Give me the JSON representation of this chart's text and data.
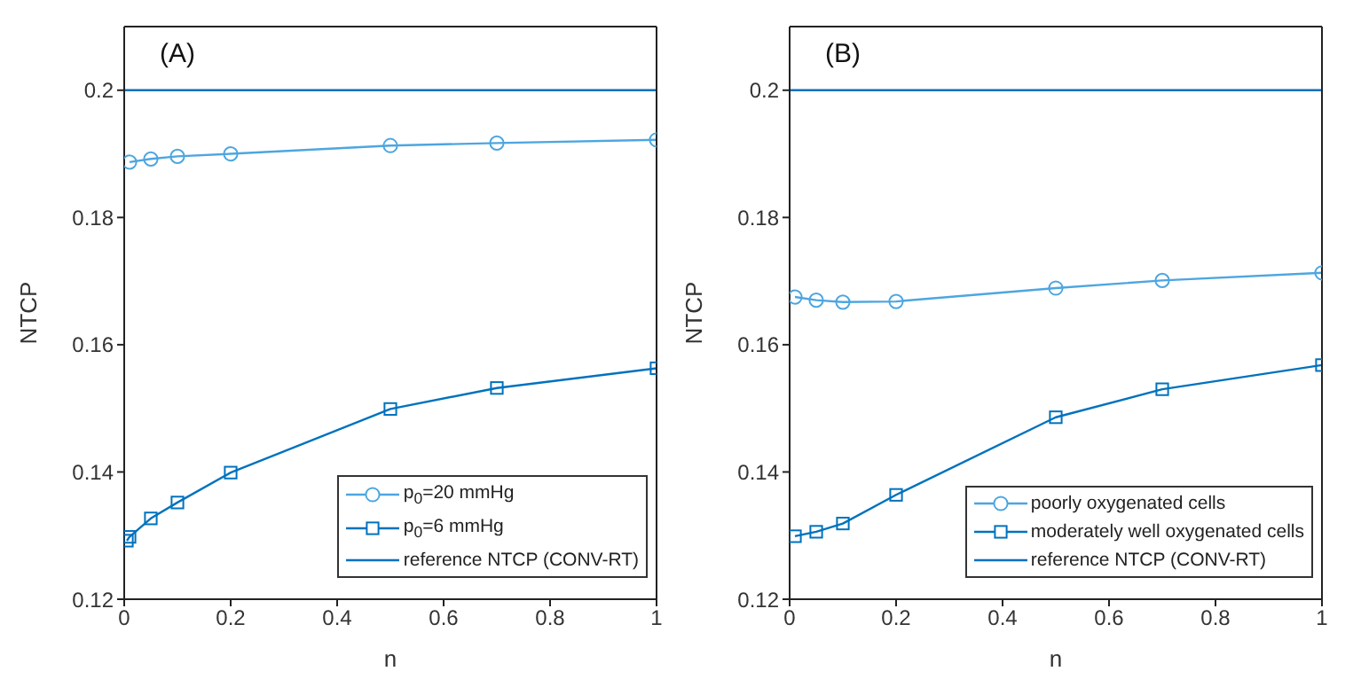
{
  "chart_data": [
    {
      "type": "line",
      "annotations": [
        "(A)"
      ],
      "xlabel": "n",
      "ylabel": "NTCP",
      "xlim": [
        0,
        1
      ],
      "xticks": [
        0,
        0.2,
        0.4,
        0.6,
        0.8,
        1
      ],
      "ylim": [
        0.12,
        0.21
      ],
      "yticks": [
        0.12,
        0.14,
        0.16,
        0.18,
        0.2
      ],
      "legend": "bottom right",
      "series": [
        {
          "name": "p$_{0}$=20 mmHg",
          "color": "#4da6e0",
          "marker": "circle",
          "x": [
            0.01,
            0.05,
            0.1,
            0.2,
            0.5,
            0.7,
            1
          ],
          "values": [
            0.1887,
            0.1892,
            0.1896,
            0.19,
            0.1913,
            0.1917,
            0.1922
          ]
        },
        {
          "name": "p$_{0}$=6 mmHg",
          "color": "#0072bd",
          "marker": "square",
          "x": [
            0.005,
            0.01,
            0.05,
            0.1,
            0.2,
            0.5,
            0.7,
            1
          ],
          "values": [
            0.1292,
            0.1298,
            0.1327,
            0.1352,
            0.1399,
            0.1499,
            0.1532,
            0.1563
          ]
        },
        {
          "name": "reference NTCP (CONV-RT)",
          "color": "#0072bd",
          "marker": "none",
          "x": [
            0,
            1
          ],
          "values": [
            0.2,
            0.2
          ]
        }
      ]
    },
    {
      "type": "line",
      "annotations": [
        "(B)"
      ],
      "xlabel": "n",
      "ylabel": "NTCP",
      "xlim": [
        0,
        1
      ],
      "xticks": [
        0,
        0.2,
        0.4,
        0.6,
        0.8,
        1
      ],
      "ylim": [
        0.12,
        0.21
      ],
      "yticks": [
        0.12,
        0.14,
        0.16,
        0.18,
        0.2
      ],
      "legend": "bottom right",
      "series": [
        {
          "name": "poorly oxygenated cells",
          "color": "#4da6e0",
          "marker": "circle",
          "x": [
            0.01,
            0.05,
            0.1,
            0.2,
            0.5,
            0.7,
            1
          ],
          "values": [
            0.1675,
            0.167,
            0.1667,
            0.1668,
            0.1689,
            0.1701,
            0.1713
          ]
        },
        {
          "name": "moderately well oxygenated cells",
          "color": "#0072bd",
          "marker": "square",
          "x": [
            0.01,
            0.05,
            0.1,
            0.2,
            0.5,
            0.7,
            1
          ],
          "values": [
            0.1299,
            0.1306,
            0.1319,
            0.1364,
            0.1486,
            0.153,
            0.1568
          ]
        },
        {
          "name": "reference NTCP (CONV-RT)",
          "color": "#0072bd",
          "marker": "none",
          "x": [
            0,
            1
          ],
          "values": [
            0.2,
            0.2
          ]
        }
      ]
    }
  ]
}
